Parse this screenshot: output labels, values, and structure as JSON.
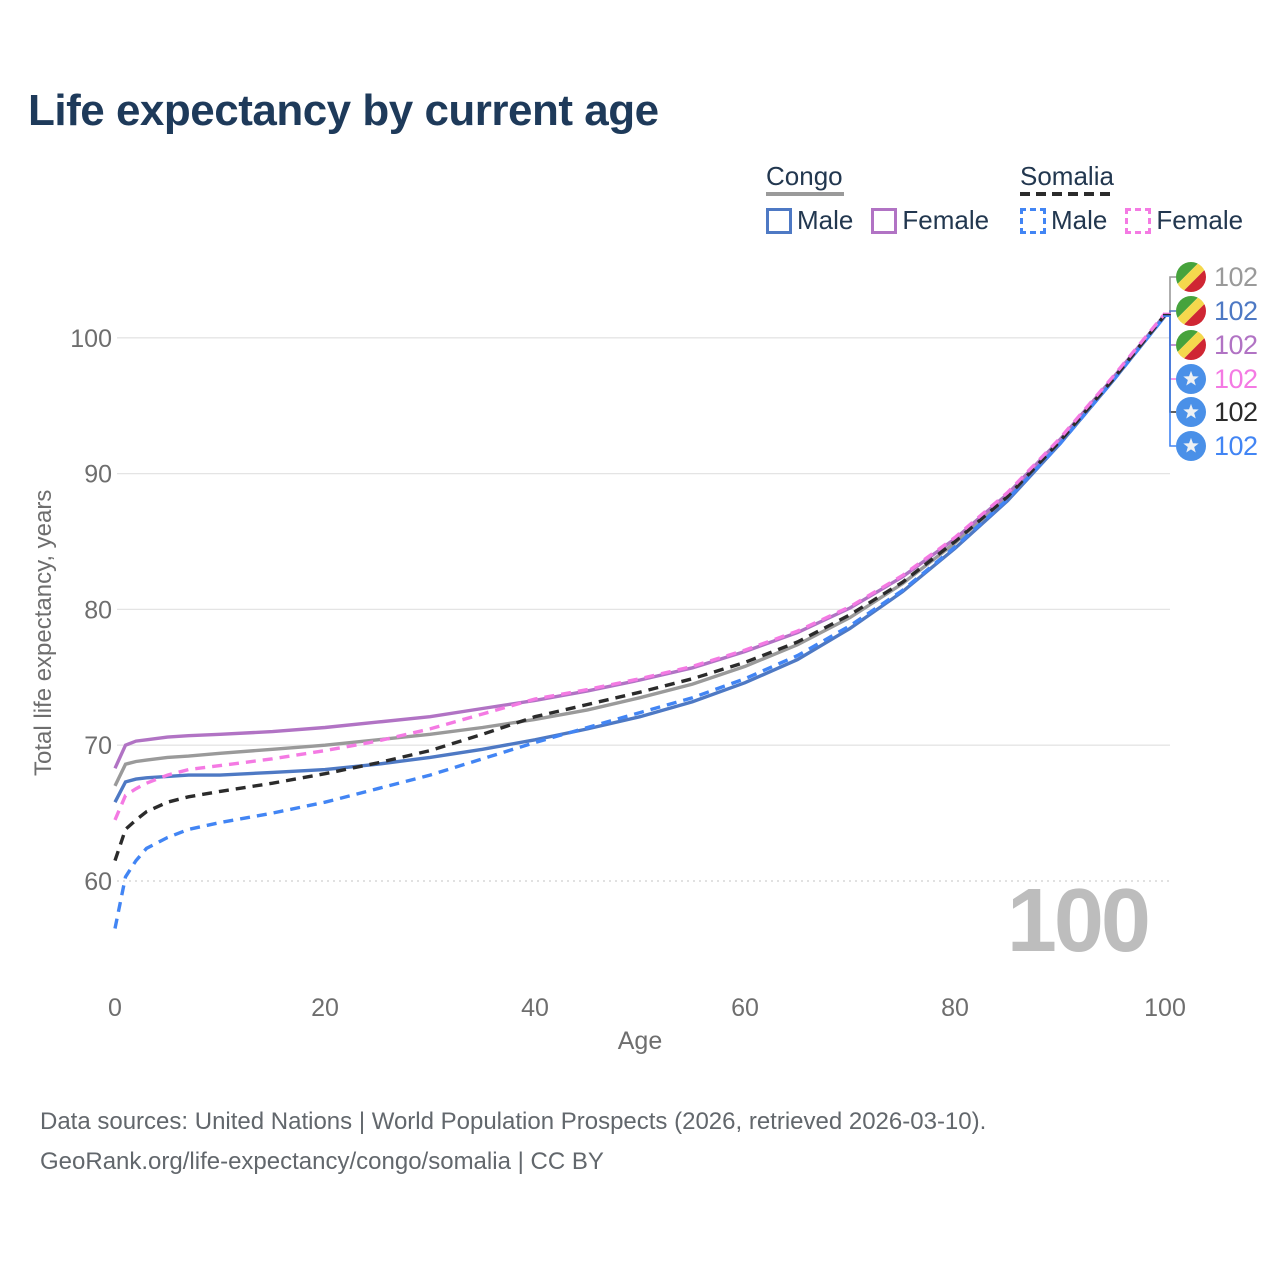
{
  "title": "Life expectancy by current age",
  "legend": {
    "congo": {
      "label": "Congo",
      "male_label": "Male",
      "female_label": "Female"
    },
    "somalia": {
      "label": "Somalia",
      "male_label": "Male",
      "female_label": "Female"
    }
  },
  "colors": {
    "title_text": "#1e3a5a",
    "legend_text": "#22374f",
    "axis_text": "#6e6e6e",
    "gridline": "#e4e4e4",
    "bottom_gridline": "#cfcfcf",
    "watermark": "#bdbdbd",
    "congo_flag_green": "#46a33c",
    "congo_flag_yellow": "#f5d84d",
    "congo_flag_red": "#cf2633",
    "somalia_flag_blue": "#4a90e8"
  },
  "watermark": "100",
  "footer": {
    "line1": "Data sources: United Nations | World Population Prospects (2026, retrieved 2026-03-10).",
    "line2": "GeoRank.org/life-expectancy/congo/somalia | CC BY"
  },
  "chart_data": {
    "type": "line",
    "title": "Life expectancy by current age",
    "xlabel": "Age",
    "ylabel": "Total life expectancy, years",
    "x_ticks": [
      0,
      20,
      40,
      60,
      80,
      100
    ],
    "y_ticks": [
      60,
      70,
      80,
      90,
      100
    ],
    "xlim": [
      0,
      100
    ],
    "ylim": [
      55,
      103
    ],
    "grid": "horizontal",
    "legend_position": "top-right",
    "ages": [
      0,
      1,
      2,
      3,
      5,
      7,
      10,
      15,
      20,
      25,
      30,
      35,
      40,
      45,
      50,
      55,
      60,
      65,
      70,
      75,
      80,
      85,
      90,
      95,
      100
    ],
    "series": [
      {
        "id": "congo-all",
        "name": "Congo — Both sexes",
        "country": "Congo",
        "sex": "Both",
        "style": "solid",
        "color": "#9a9a9a",
        "z": 1,
        "flag": "congo",
        "end_label": "102",
        "values": [
          67.0,
          68.6,
          68.8,
          68.9,
          69.1,
          69.2,
          69.4,
          69.7,
          70.0,
          70.4,
          70.8,
          71.3,
          71.9,
          72.6,
          73.5,
          74.5,
          75.8,
          77.4,
          79.4,
          81.9,
          84.9,
          88.3,
          92.4,
          96.9,
          101.7
        ]
      },
      {
        "id": "congo-male",
        "name": "Congo — Male",
        "country": "Congo",
        "sex": "Male",
        "style": "solid",
        "color": "#4e79c4",
        "z": 2,
        "flag": "congo",
        "end_label": "102",
        "values": [
          65.8,
          67.3,
          67.5,
          67.6,
          67.7,
          67.8,
          67.8,
          68.0,
          68.2,
          68.6,
          69.1,
          69.7,
          70.4,
          71.2,
          72.1,
          73.2,
          74.6,
          76.3,
          78.6,
          81.3,
          84.5,
          88.0,
          92.2,
          96.8,
          101.6
        ]
      },
      {
        "id": "congo-female",
        "name": "Congo — Female",
        "country": "Congo",
        "sex": "Female",
        "style": "solid",
        "color": "#b173c4",
        "z": 3,
        "flag": "congo",
        "end_label": "102",
        "values": [
          68.3,
          70.0,
          70.3,
          70.4,
          70.6,
          70.7,
          70.8,
          71.0,
          71.3,
          71.7,
          72.1,
          72.7,
          73.3,
          74.0,
          74.8,
          75.7,
          76.9,
          78.3,
          80.1,
          82.4,
          85.2,
          88.5,
          92.5,
          97.0,
          101.7
        ]
      },
      {
        "id": "somalia-female",
        "name": "Somalia — Female",
        "country": "Somalia",
        "sex": "Female",
        "style": "dashed",
        "color": "#f47ae3",
        "z": 6,
        "flag": "somalia",
        "end_label": "102",
        "values": [
          64.5,
          66.3,
          66.8,
          67.2,
          67.8,
          68.2,
          68.5,
          69.0,
          69.6,
          70.3,
          71.2,
          72.3,
          73.4,
          74.1,
          74.9,
          75.8,
          77.0,
          78.4,
          80.2,
          82.5,
          85.3,
          88.6,
          92.6,
          97.1,
          101.8
        ]
      },
      {
        "id": "somalia-all",
        "name": "Somalia — Both sexes",
        "country": "Somalia",
        "sex": "Both",
        "style": "dashed",
        "color": "#2b2b2b",
        "z": 5,
        "flag": "somalia",
        "end_label": "102",
        "values": [
          61.5,
          63.8,
          64.5,
          65.1,
          65.8,
          66.2,
          66.6,
          67.2,
          67.9,
          68.7,
          69.6,
          70.8,
          72.1,
          73.0,
          73.9,
          74.9,
          76.1,
          77.6,
          79.6,
          82.0,
          85.0,
          88.3,
          92.4,
          96.9,
          101.7
        ]
      },
      {
        "id": "somalia-male",
        "name": "Somalia — Male",
        "country": "Somalia",
        "sex": "Male",
        "style": "dashed",
        "color": "#4285f4",
        "z": 4,
        "flag": "somalia",
        "end_label": "102",
        "values": [
          56.5,
          60.3,
          61.5,
          62.4,
          63.2,
          63.8,
          64.3,
          65.0,
          65.8,
          66.8,
          67.8,
          69.0,
          70.2,
          71.3,
          72.4,
          73.5,
          74.9,
          76.6,
          78.8,
          81.4,
          84.6,
          88.1,
          92.2,
          96.8,
          101.6
        ]
      }
    ]
  }
}
